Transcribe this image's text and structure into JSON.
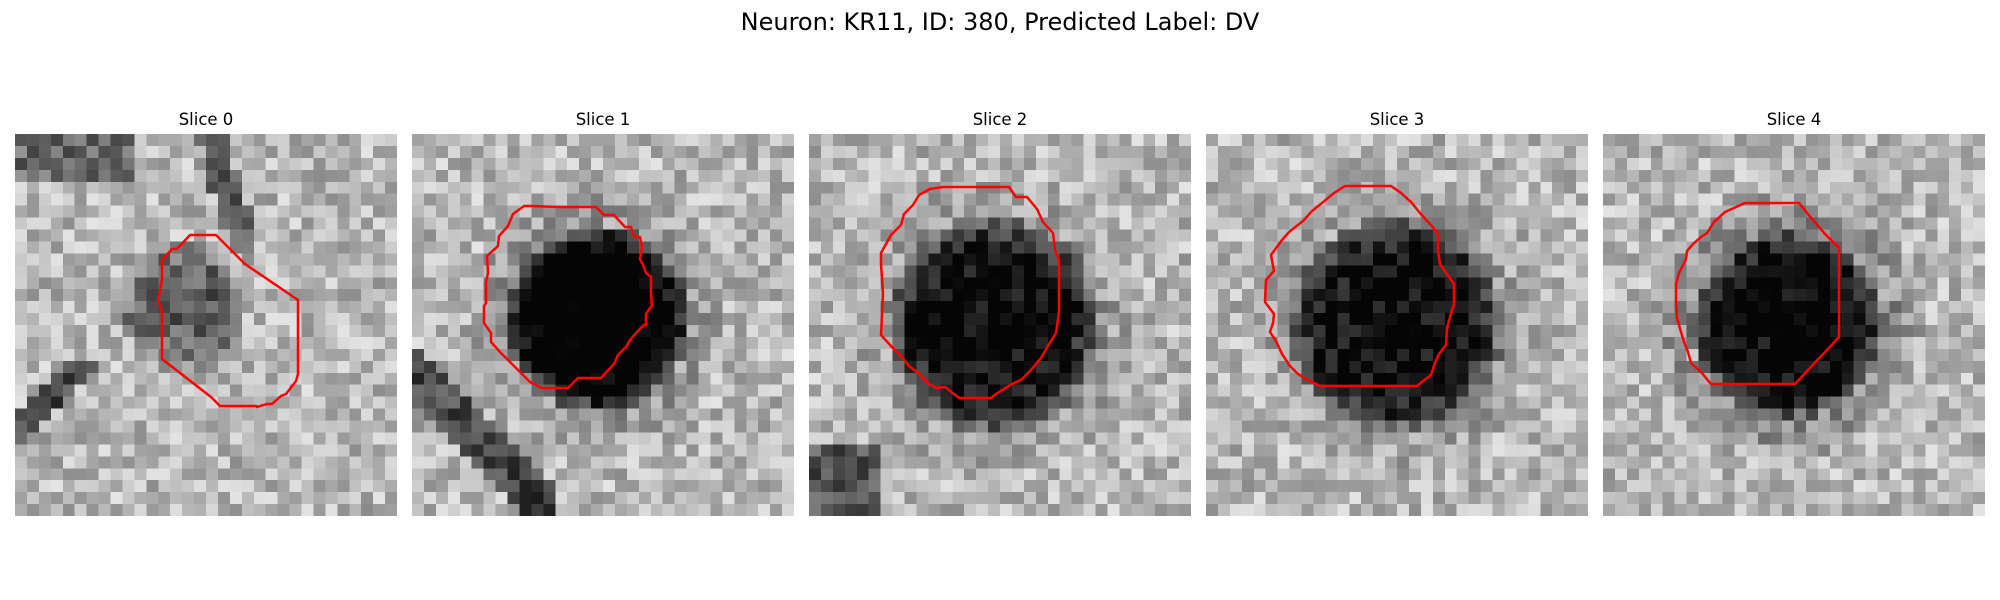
{
  "figure": {
    "title": "Neuron: KR11, ID: 380, Predicted Label: DV"
  },
  "panels": [
    {
      "title": "Slice 0"
    },
    {
      "title": "Slice 1"
    },
    {
      "title": "Slice 2"
    },
    {
      "title": "Slice 3"
    },
    {
      "title": "Slice 4"
    }
  ],
  "colors": {
    "contour": "#ff0000",
    "background": "#ffffff"
  }
}
